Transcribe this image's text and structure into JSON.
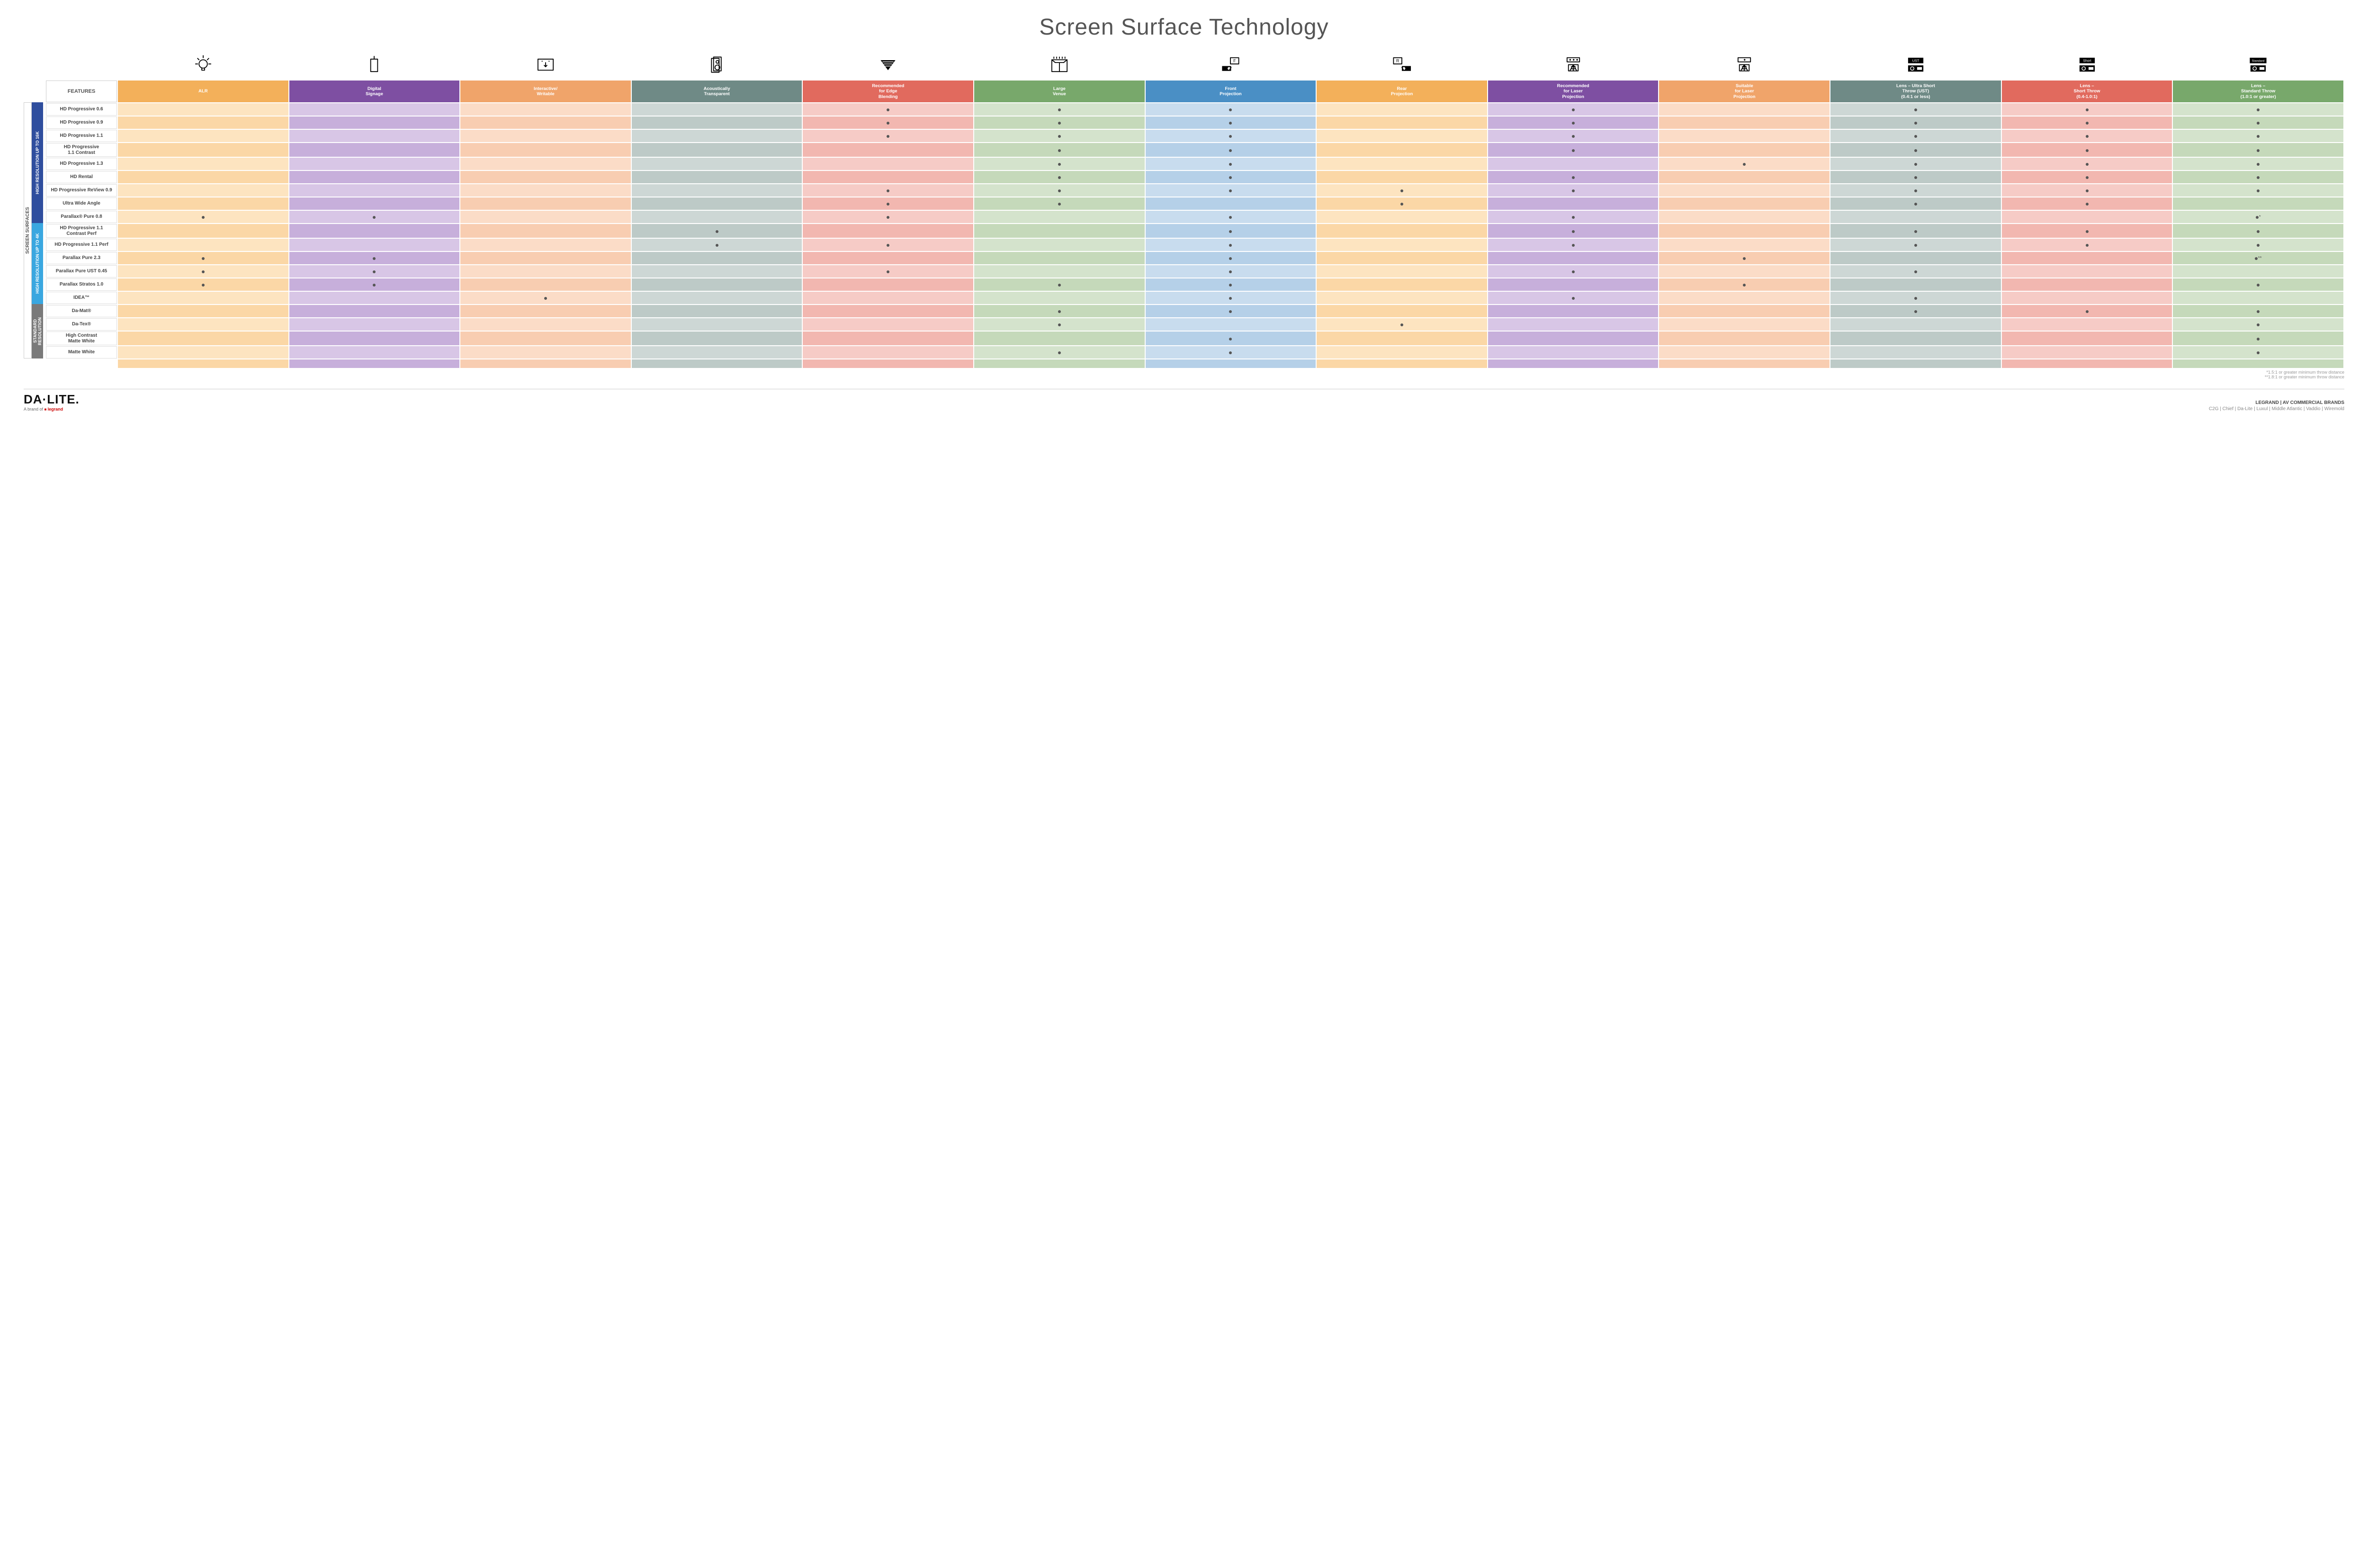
{
  "title": "Screen Surface Technology",
  "features_header": "FEATURES",
  "columns": [
    {
      "key": "alr",
      "label": "ALR",
      "color": "#f3b05a"
    },
    {
      "key": "signage",
      "label": "Digital\nSignage",
      "color": "#7e4fa2"
    },
    {
      "key": "writable",
      "label": "Interactive/\nWritable",
      "color": "#f0a46a"
    },
    {
      "key": "acoustic",
      "label": "Acoustically\nTransparent",
      "color": "#6f8a86"
    },
    {
      "key": "edge",
      "label": "Recommended\nfor Edge\nBlending",
      "color": "#e16a5e"
    },
    {
      "key": "venue",
      "label": "Large\nVenue",
      "color": "#78a86b"
    },
    {
      "key": "front",
      "label": "Front\nProjection",
      "color": "#4a8fc5"
    },
    {
      "key": "rear",
      "label": "Rear\nProjection",
      "color": "#f3b05a"
    },
    {
      "key": "laser_rec",
      "label": "Recommended\nfor Laser\nProjection",
      "color": "#7e4fa2"
    },
    {
      "key": "laser_suit",
      "label": "Suitable\nfor Laser\nProjection",
      "color": "#f0a46a"
    },
    {
      "key": "ust",
      "label": "Lens – Ultra Short\nThrow (UST)\n(0.4:1 or less)",
      "color": "#6f8a86"
    },
    {
      "key": "short",
      "label": "Lens –\nShort Throw\n(0.4-1.0:1)",
      "color": "#e16a5e"
    },
    {
      "key": "std",
      "label": "Lens –\nStandard Throw\n(1.0:1 or greater)",
      "color": "#78a86b"
    }
  ],
  "column_tints": {
    "alr": [
      "#fde4c0",
      "#fbd7a6"
    ],
    "signage": [
      "#d8c6e6",
      "#c7afdb"
    ],
    "writable": [
      "#fbdcc7",
      "#f8cdb1"
    ],
    "acoustic": [
      "#cdd7d5",
      "#bdcac7"
    ],
    "edge": [
      "#f6cbc6",
      "#f2b7b0"
    ],
    "venue": [
      "#d4e3cc",
      "#c5d9ba"
    ],
    "front": [
      "#c8dcee",
      "#b5d0e8"
    ],
    "rear": [
      "#fde4c0",
      "#fbd7a6"
    ],
    "laser_rec": [
      "#d8c6e6",
      "#c7afdb"
    ],
    "laser_suit": [
      "#fbdcc7",
      "#f8cdb1"
    ],
    "ust": [
      "#cdd7d5",
      "#bdcac7"
    ],
    "short": [
      "#f6cbc6",
      "#f2b7b0"
    ],
    "std": [
      "#d4e3cc",
      "#c5d9ba"
    ]
  },
  "side_label": "SCREEN SURFACES",
  "groups": [
    {
      "label": "HIGH RESOLUTION UP TO 16K",
      "color": "#2f4e9e",
      "rows": 9
    },
    {
      "label": "HIGH RESOLUTION UP TO 4K",
      "color": "#3aa7e0",
      "rows": 6
    },
    {
      "label": "STANDARD\nRESOLUTION",
      "color": "#7a7a7a",
      "rows": 4
    }
  ],
  "rows": [
    {
      "label": "HD Progressive 0.6",
      "dots": {
        "edge": ".",
        "venue": ".",
        "front": ".",
        "laser_rec": ".",
        "ust": ".",
        "short": ".",
        "std": "."
      }
    },
    {
      "label": "HD Progressive 0.9",
      "dots": {
        "edge": ".",
        "venue": ".",
        "front": ".",
        "laser_rec": ".",
        "ust": ".",
        "short": ".",
        "std": "."
      }
    },
    {
      "label": "HD Progressive 1.1",
      "dots": {
        "edge": ".",
        "venue": ".",
        "front": ".",
        "laser_rec": ".",
        "ust": ".",
        "short": ".",
        "std": "."
      }
    },
    {
      "label": "HD Progressive\n1.1 Contrast",
      "dots": {
        "venue": ".",
        "front": ".",
        "laser_rec": ".",
        "ust": ".",
        "short": ".",
        "std": "."
      }
    },
    {
      "label": "HD Progressive 1.3",
      "dots": {
        "venue": ".",
        "front": ".",
        "laser_suit": ".",
        "ust": ".",
        "short": ".",
        "std": "."
      }
    },
    {
      "label": "HD Rental",
      "dots": {
        "venue": ".",
        "front": ".",
        "laser_rec": ".",
        "ust": ".",
        "short": ".",
        "std": "."
      }
    },
    {
      "label": "HD Progressive ReView 0.9",
      "dots": {
        "edge": ".",
        "venue": ".",
        "front": ".",
        "rear": ".",
        "laser_rec": ".",
        "ust": ".",
        "short": ".",
        "std": "."
      }
    },
    {
      "label": "Ultra Wide Angle",
      "dots": {
        "edge": ".",
        "venue": ".",
        "rear": ".",
        "ust": ".",
        "short": "."
      }
    },
    {
      "label": "Parallax® Pure 0.8",
      "dots": {
        "alr": ".",
        "signage": ".",
        "edge": ".",
        "front": ".",
        "laser_rec": ".",
        "std": "*"
      }
    },
    {
      "label": "HD Progressive 1.1\nContrast Perf",
      "dots": {
        "acoustic": ".",
        "front": ".",
        "laser_rec": ".",
        "ust": ".",
        "short": ".",
        "std": "."
      }
    },
    {
      "label": "HD Progressive 1.1 Perf",
      "dots": {
        "acoustic": ".",
        "edge": ".",
        "front": ".",
        "laser_rec": ".",
        "ust": ".",
        "short": ".",
        "std": "."
      }
    },
    {
      "label": "Parallax Pure 2.3",
      "dots": {
        "alr": ".",
        "signage": ".",
        "front": ".",
        "laser_suit": ".",
        "std": "**"
      }
    },
    {
      "label": "Parallax Pure UST 0.45",
      "dots": {
        "alr": ".",
        "signage": ".",
        "edge": ".",
        "front": ".",
        "laser_rec": ".",
        "ust": "."
      }
    },
    {
      "label": "Parallax Stratos 1.0",
      "dots": {
        "alr": ".",
        "signage": ".",
        "venue": ".",
        "front": ".",
        "laser_suit": ".",
        "std": "."
      }
    },
    {
      "label": "IDEA™",
      "dots": {
        "writable": ".",
        "front": ".",
        "laser_rec": ".",
        "ust": "."
      }
    },
    {
      "label": "Da-Mat®",
      "dots": {
        "venue": ".",
        "front": ".",
        "ust": ".",
        "short": ".",
        "std": "."
      }
    },
    {
      "label": "Da-Tex®",
      "dots": {
        "venue": ".",
        "rear": ".",
        "std": "."
      }
    },
    {
      "label": "High Contrast\nMatte White",
      "dots": {
        "front": ".",
        "std": "."
      }
    },
    {
      "label": "Matte White",
      "dots": {
        "venue": ".",
        "front": ".",
        "std": "."
      }
    }
  ],
  "footnotes": [
    "*1.5:1 or greater minimum throw distance",
    "**1.8:1 or greater minimum throw distance"
  ],
  "footer": {
    "logo": "DA·LITE.",
    "logo_sub_prefix": "A brand of ",
    "logo_sub_brand": "legrand",
    "right_title": "LEGRAND | AV COMMERCIAL BRANDS",
    "brands": "C2G  |  Chief  |  Da-Lite  |  Luxul  |  Middle Atlantic  |  Vaddio  |  Wiremold"
  },
  "icons": [
    "bulb",
    "signage",
    "touch",
    "speaker",
    "blend",
    "venue",
    "front",
    "rear",
    "laser3",
    "laser1",
    "ust",
    "short",
    "standard"
  ]
}
